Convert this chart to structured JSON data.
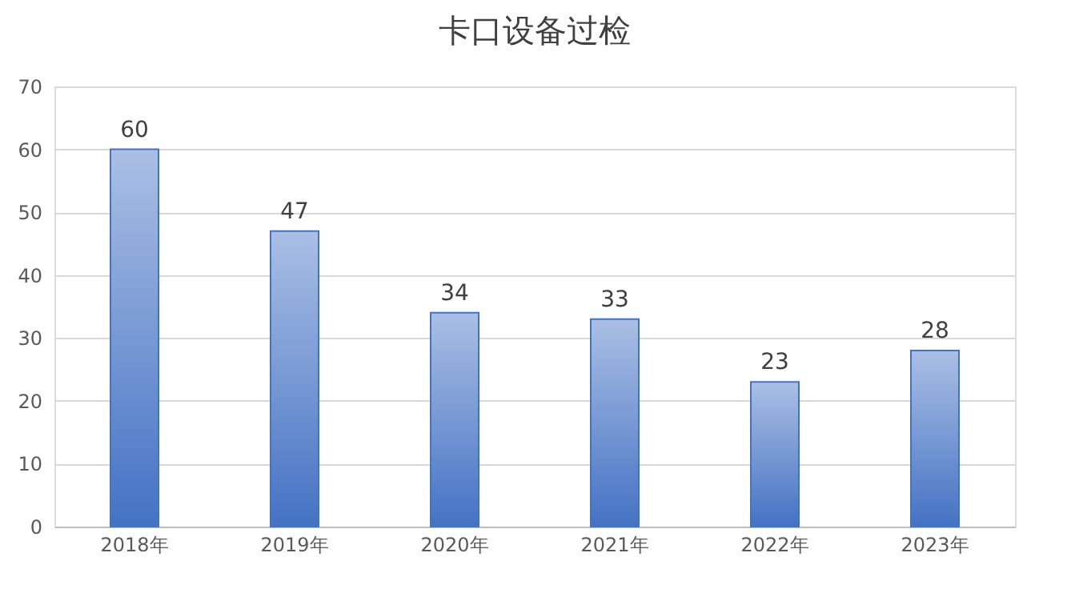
{
  "chart_data": {
    "type": "bar",
    "title": "卡口设备过检",
    "categories": [
      "2018年",
      "2019年",
      "2020年",
      "2021年",
      "2022年",
      "2023年"
    ],
    "values": [
      60,
      47,
      34,
      33,
      23,
      28
    ],
    "color": "#4472c4",
    "ylim": [
      0,
      70
    ],
    "yticks": [
      0,
      10,
      20,
      30,
      40,
      50,
      60,
      70
    ],
    "grid": "y",
    "data_labels": true
  }
}
